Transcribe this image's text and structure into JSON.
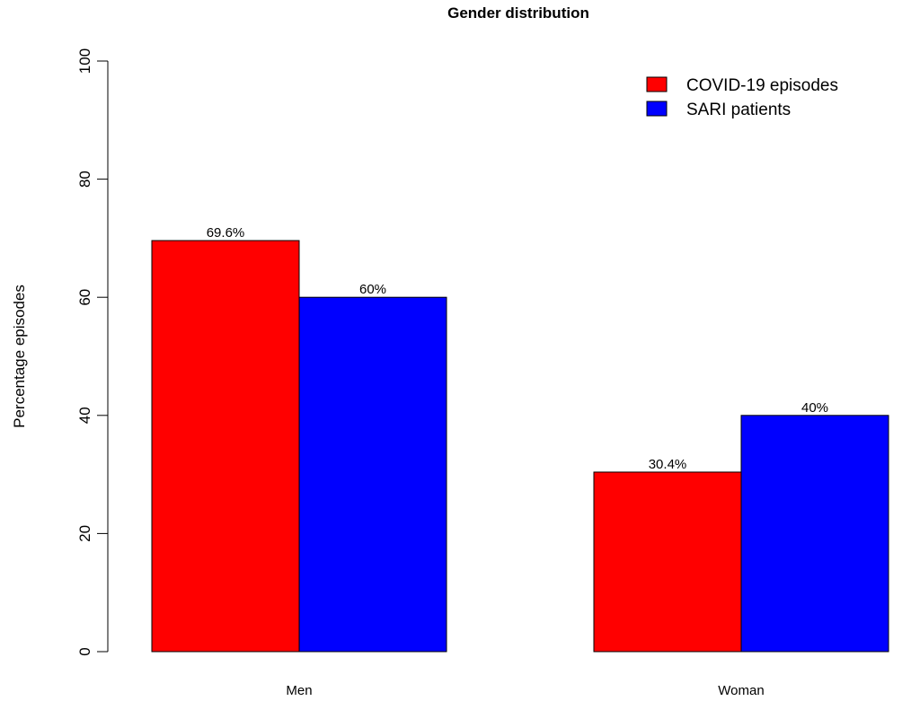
{
  "chart_data": {
    "type": "bar",
    "title": "Gender distribution",
    "xlabel": "",
    "ylabel": "Percentage episodes",
    "ylim": [
      0,
      100
    ],
    "yticks": [
      0,
      20,
      40,
      60,
      80,
      100
    ],
    "grid": false,
    "legend_position": "top-right",
    "categories": [
      "Men",
      "Woman"
    ],
    "series": [
      {
        "name": "COVID-19 episodes",
        "color": "#ff0000",
        "values": [
          69.6,
          30.4
        ],
        "labels": [
          "69.6%",
          "30.4%"
        ]
      },
      {
        "name": "SARI patients",
        "color": "#0000ff",
        "values": [
          60,
          40
        ],
        "labels": [
          "60%",
          "40%"
        ]
      }
    ]
  }
}
